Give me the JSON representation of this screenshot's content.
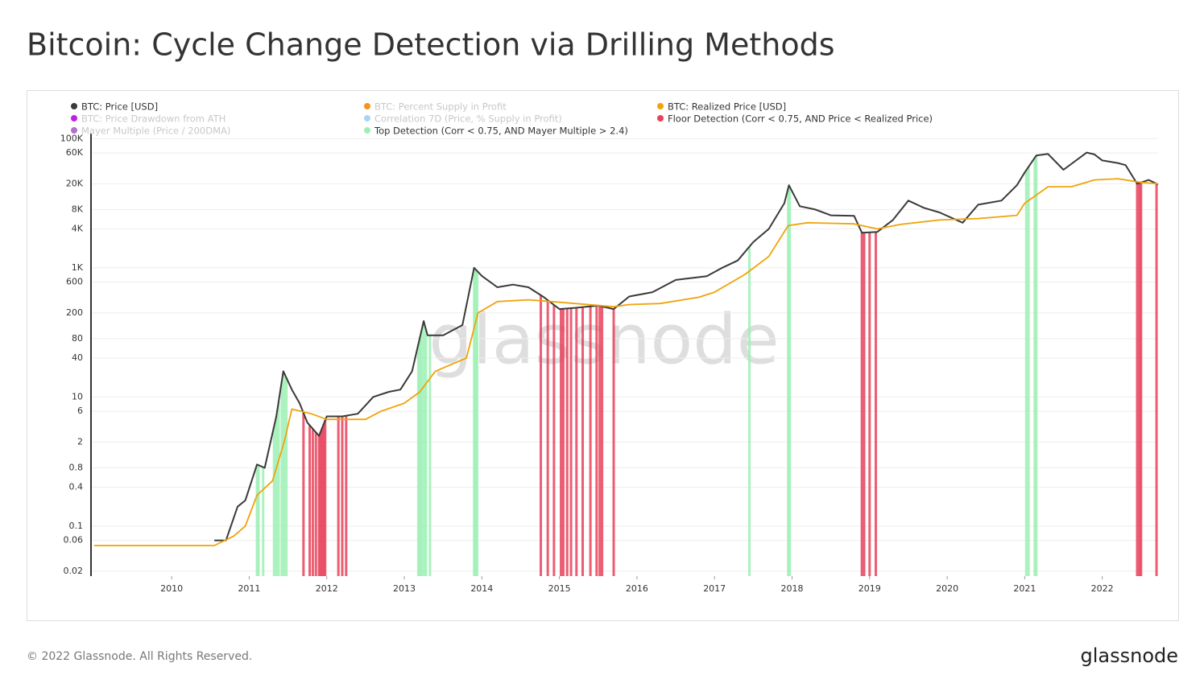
{
  "chart_data": {
    "type": "line",
    "title": "Bitcoin: Cycle Change Detection via Drilling Methods",
    "watermark": "glassnode",
    "footer": "© 2022 Glassnode. All Rights Reserved.",
    "logo": "glassnode",
    "log_scale": true,
    "grid": true,
    "xlim": [
      2008.96,
      2022.72
    ],
    "xticks": [
      2010,
      2011,
      2012,
      2013,
      2014,
      2015,
      2016,
      2017,
      2018,
      2019,
      2020,
      2021,
      2022
    ],
    "ylim": [
      0.0168,
      120000
    ],
    "yticks": [
      0.02,
      0.06,
      0.1,
      0.4,
      0.8,
      2,
      6,
      10,
      40,
      80,
      200,
      600,
      {
        "value": 1000,
        "label": "1K"
      },
      {
        "value": 4000,
        "label": "4K"
      },
      {
        "value": 8000,
        "label": "8K"
      },
      {
        "value": 20000,
        "label": "20K"
      },
      {
        "value": 60000,
        "label": "60K"
      },
      {
        "value": 100000,
        "label": "100K"
      }
    ],
    "series": [
      {
        "name": "BTC: Price [USD]",
        "color": "#3a3a3a",
        "visible": true,
        "kind": "line",
        "x": [
          2010.55,
          2010.7,
          2010.85,
          2010.95,
          2011.1,
          2011.2,
          2011.35,
          2011.44,
          2011.55,
          2011.65,
          2011.75,
          2011.9,
          2012.0,
          2012.2,
          2012.4,
          2012.6,
          2012.8,
          2012.95,
          2013.1,
          2013.25,
          2013.3,
          2013.5,
          2013.75,
          2013.9,
          2014.0,
          2014.2,
          2014.4,
          2014.6,
          2014.8,
          2015.0,
          2015.2,
          2015.5,
          2015.7,
          2015.9,
          2016.2,
          2016.5,
          2016.9,
          2017.1,
          2017.3,
          2017.5,
          2017.7,
          2017.9,
          2017.96,
          2018.1,
          2018.3,
          2018.5,
          2018.8,
          2018.9,
          2019.1,
          2019.3,
          2019.5,
          2019.7,
          2019.9,
          2020.2,
          2020.4,
          2020.7,
          2020.9,
          2021.0,
          2021.15,
          2021.3,
          2021.5,
          2021.8,
          2021.9,
          2022.0,
          2022.2,
          2022.3,
          2022.45,
          2022.6,
          2022.72
        ],
        "values": [
          0.06,
          0.06,
          0.2,
          0.25,
          0.9,
          0.8,
          5,
          25,
          13,
          8,
          4,
          2.5,
          5,
          5,
          5.5,
          10,
          12,
          13,
          25,
          150,
          90,
          90,
          130,
          1000,
          750,
          500,
          550,
          500,
          350,
          230,
          240,
          260,
          230,
          360,
          420,
          650,
          740,
          1000,
          1300,
          2500,
          4000,
          10000,
          19000,
          9000,
          8000,
          6500,
          6400,
          3500,
          3600,
          5500,
          11000,
          8500,
          7200,
          5000,
          9500,
          11000,
          19000,
          30000,
          55000,
          58000,
          33000,
          61000,
          57000,
          46000,
          42000,
          39000,
          20000,
          23000,
          19500
        ]
      },
      {
        "name": "BTC: Percent Supply in Profit",
        "color": "#f7931a",
        "visible": false
      },
      {
        "name": "BTC: Realized Price [USD]",
        "color": "#f0a30a",
        "visible": true,
        "kind": "line",
        "x": [
          2009.0,
          2010.55,
          2010.8,
          2010.95,
          2011.1,
          2011.3,
          2011.45,
          2011.55,
          2011.8,
          2012.0,
          2012.5,
          2012.7,
          2013.0,
          2013.2,
          2013.4,
          2013.8,
          2013.95,
          2014.2,
          2014.6,
          2014.9,
          2015.2,
          2015.7,
          2015.9,
          2016.3,
          2016.8,
          2017.0,
          2017.4,
          2017.7,
          2017.95,
          2018.2,
          2018.8,
          2019.1,
          2019.4,
          2019.9,
          2020.4,
          2020.9,
          2021.0,
          2021.3,
          2021.6,
          2021.9,
          2022.2,
          2022.5,
          2022.72
        ],
        "values": [
          0.05,
          0.05,
          0.07,
          0.1,
          0.3,
          0.5,
          2,
          6.5,
          5.5,
          4.5,
          4.5,
          6,
          8,
          12,
          25,
          40,
          200,
          300,
          320,
          300,
          280,
          250,
          270,
          280,
          350,
          420,
          800,
          1500,
          4500,
          5000,
          4800,
          4000,
          4700,
          5500,
          5800,
          6500,
          10000,
          18000,
          18000,
          23000,
          24000,
          21000,
          20000
        ]
      },
      {
        "name": "BTC: Price Drawdown from ATH",
        "color": "#c020e0",
        "visible": false
      },
      {
        "name": "Correlation 7D (Price, % Supply in Profit)",
        "color": "#a8d4f5",
        "visible": false
      },
      {
        "name": "Floor Detection (Corr < 0.75, AND Price < Realized Price)",
        "color": "#e8425a",
        "visible": true,
        "kind": "events",
        "x": [
          2011.7,
          2011.78,
          2011.82,
          2011.86,
          2011.9,
          2011.92,
          2011.94,
          2011.96,
          2011.98,
          2012.15,
          2012.2,
          2012.25,
          2014.76,
          2014.85,
          2014.93,
          2015.02,
          2015.05,
          2015.1,
          2015.15,
          2015.22,
          2015.3,
          2015.4,
          2015.48,
          2015.52,
          2015.55,
          2015.7,
          2018.9,
          2018.93,
          2019.0,
          2019.08,
          2022.45,
          2022.48,
          2022.5,
          2022.7
        ]
      },
      {
        "name": "Mayer Multiple (Price / 200DMA)",
        "color": "#b070d0",
        "visible": false
      },
      {
        "name": "Top Detection (Corr < 0.75, AND Mayer Multiple > 2.4)",
        "color": "#9cf0b4",
        "visible": true,
        "kind": "events",
        "x": [
          2011.1,
          2011.12,
          2011.18,
          2011.32,
          2011.35,
          2011.38,
          2011.42,
          2011.45,
          2011.48,
          2013.18,
          2013.2,
          2013.22,
          2013.25,
          2013.28,
          2013.33,
          2013.9,
          2013.92,
          2013.94,
          2017.45,
          2017.95,
          2017.97,
          2021.02,
          2021.05,
          2021.13,
          2021.15
        ]
      }
    ]
  }
}
